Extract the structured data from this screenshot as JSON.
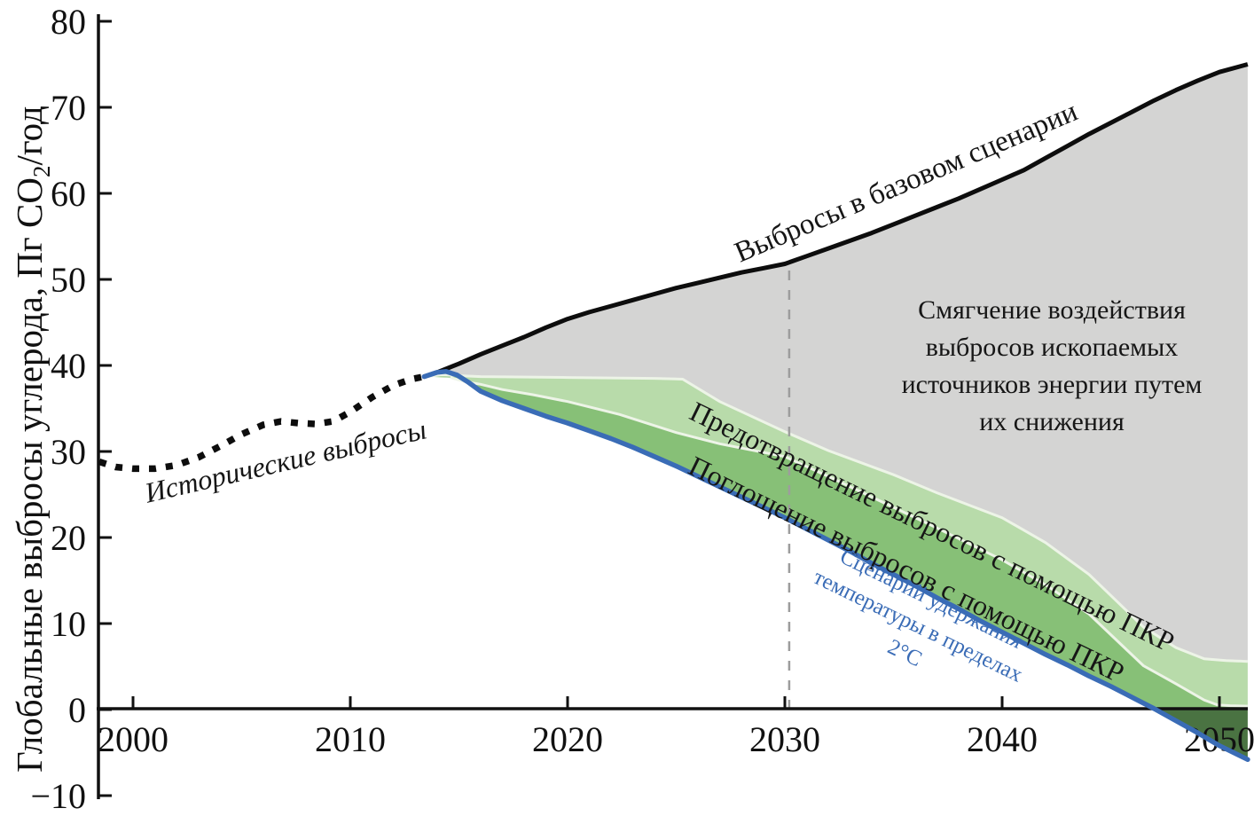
{
  "chart_data": {
    "type": "area",
    "title": "",
    "xlabel": "",
    "ylabel": {
      "pre": "Глобальные выбросы углерода, Пг СО",
      "sub": "2",
      "post": "/год"
    },
    "xlim": [
      1998.4,
      2051.3
    ],
    "ylim": [
      -10,
      80
    ],
    "grid": false,
    "legend_position": "none",
    "x_ticks": [
      {
        "v": 2000,
        "label": "2000"
      },
      {
        "v": 2010,
        "label": "2010"
      },
      {
        "v": 2020,
        "label": "2020"
      },
      {
        "v": 2030,
        "label": "2030"
      },
      {
        "v": 2040,
        "label": "2040"
      },
      {
        "v": 2050,
        "label": "2050"
      }
    ],
    "y_ticks": [
      {
        "v": 80,
        "label": "80"
      },
      {
        "v": 70,
        "label": "70"
      },
      {
        "v": 60,
        "label": "60"
      },
      {
        "v": 50,
        "label": "50"
      },
      {
        "v": 40,
        "label": "40"
      },
      {
        "v": 30,
        "label": "30"
      },
      {
        "v": 20,
        "label": "20"
      },
      {
        "v": 10,
        "label": "10"
      },
      {
        "v": 0,
        "label": "0"
      },
      {
        "v": -10,
        "label": "−10"
      }
    ],
    "reference_line": {
      "x": 2030.2,
      "y_top": 51.9,
      "style": "dashed"
    },
    "series": [
      {
        "id": "historical",
        "label": "Исторические выбросы",
        "type": "line",
        "style": "dotted",
        "color": "#0d0d0d"
      },
      {
        "id": "baseline",
        "label": "Выбросы в базовом сценарии",
        "type": "line",
        "style": "solid",
        "color": "#0d0d0d"
      },
      {
        "id": "two_deg",
        "label": "Сценарий удержания температуры в пределах 2°C",
        "type": "line",
        "style": "solid",
        "color": "#3a6cb6"
      },
      {
        "id": "mitigation",
        "label": "Смягчение воздействия выбросов ископаемых источников энергии путем их снижения",
        "type": "area",
        "color": "#d4d4d3"
      },
      {
        "id": "prevention",
        "label": "Предотвращение выбросов с помощью ПКР",
        "type": "area",
        "color": "#b8dbaa"
      },
      {
        "id": "absorption",
        "label": "Поглощение выбросов с помощью ПКР",
        "type": "area",
        "color": "#87c077"
      },
      {
        "id": "absorption_below_zero",
        "label": "",
        "type": "area",
        "color": "#4a7342"
      }
    ],
    "boundaries": {
      "historical": [
        [
          1998.45,
          28.8
        ],
        [
          1999.2,
          28.2
        ],
        [
          2000,
          28.0
        ],
        [
          2001,
          28.0
        ],
        [
          2002,
          28.4
        ],
        [
          2003,
          29.3
        ],
        [
          2004,
          30.6
        ],
        [
          2005,
          32.0
        ],
        [
          2006,
          33.1
        ],
        [
          2006.8,
          33.5
        ],
        [
          2007.6,
          33.3
        ],
        [
          2008.4,
          33.2
        ],
        [
          2009.2,
          33.5
        ],
        [
          2010,
          34.6
        ],
        [
          2011,
          36.3
        ],
        [
          2012,
          37.7
        ],
        [
          2012.8,
          38.4
        ],
        [
          2013.4,
          38.7
        ]
      ],
      "baseline": [
        [
          2013.4,
          38.7
        ],
        [
          2014,
          39.2
        ],
        [
          2015,
          40.2
        ],
        [
          2016,
          41.3
        ],
        [
          2017,
          42.3
        ],
        [
          2018,
          43.3
        ],
        [
          2019,
          44.4
        ],
        [
          2020,
          45.4
        ],
        [
          2021,
          46.2
        ],
        [
          2022,
          46.9
        ],
        [
          2023,
          47.6
        ],
        [
          2024,
          48.3
        ],
        [
          2025,
          49.0
        ],
        [
          2026,
          49.6
        ],
        [
          2027,
          50.2
        ],
        [
          2028,
          50.8
        ],
        [
          2029,
          51.3
        ],
        [
          2030,
          51.8
        ],
        [
          2031,
          52.7
        ],
        [
          2032,
          53.6
        ],
        [
          2033,
          54.5
        ],
        [
          2034,
          55.4
        ],
        [
          2035,
          56.4
        ],
        [
          2036,
          57.4
        ],
        [
          2037,
          58.4
        ],
        [
          2038,
          59.4
        ],
        [
          2039,
          60.5
        ],
        [
          2040,
          61.6
        ],
        [
          2041,
          62.7
        ],
        [
          2042,
          64.1
        ],
        [
          2043,
          65.5
        ],
        [
          2044,
          66.9
        ],
        [
          2045,
          68.2
        ],
        [
          2046,
          69.5
        ],
        [
          2047,
          70.8
        ],
        [
          2048,
          72.0
        ],
        [
          2049,
          73.1
        ],
        [
          2050,
          74.1
        ],
        [
          2051.3,
          75.0
        ]
      ],
      "gray_bottom": [
        [
          2013.4,
          38.7
        ],
        [
          2014.2,
          38.9
        ],
        [
          2016,
          38.7
        ],
        [
          2020,
          38.6
        ],
        [
          2024,
          38.5
        ],
        [
          2025.3,
          38.4
        ],
        [
          2027,
          35.8
        ],
        [
          2030,
          32.3
        ],
        [
          2032,
          30.1
        ],
        [
          2035,
          27.3
        ],
        [
          2037,
          25.2
        ],
        [
          2040,
          22.3
        ],
        [
          2042,
          19.4
        ],
        [
          2044,
          15.7
        ],
        [
          2046.5,
          9.6
        ],
        [
          2048,
          7.2
        ],
        [
          2049.3,
          5.9
        ],
        [
          2050.3,
          5.7
        ],
        [
          2051.3,
          5.6
        ]
      ],
      "separator": [
        [
          2014.6,
          38.6
        ],
        [
          2015.3,
          38.1
        ],
        [
          2016,
          37.8
        ],
        [
          2017,
          37.2
        ],
        [
          2018.4,
          36.6
        ],
        [
          2020,
          35.8
        ],
        [
          2022.4,
          34.3
        ],
        [
          2025,
          32.2
        ],
        [
          2027,
          30.9
        ],
        [
          2030,
          29.4
        ],
        [
          2032,
          27.1
        ],
        [
          2035,
          23.5
        ],
        [
          2037,
          21.1
        ],
        [
          2040,
          17.4
        ],
        [
          2042,
          14.5
        ],
        [
          2044,
          11.1
        ],
        [
          2046.5,
          5.1
        ],
        [
          2048,
          3.0
        ],
        [
          2049.3,
          1.1
        ],
        [
          2049.9,
          0.55
        ],
        [
          2050.5,
          0.45
        ],
        [
          2051.3,
          0.4
        ]
      ],
      "two_deg": [
        [
          2013.4,
          38.7
        ],
        [
          2014,
          39.2
        ],
        [
          2014.4,
          39.3
        ],
        [
          2014.9,
          38.9
        ],
        [
          2015.4,
          38.1
        ],
        [
          2016,
          37.0
        ],
        [
          2017,
          35.9
        ],
        [
          2018,
          35.0
        ],
        [
          2019,
          34.1
        ],
        [
          2020,
          33.3
        ],
        [
          2021,
          32.4
        ],
        [
          2022,
          31.5
        ],
        [
          2023,
          30.5
        ],
        [
          2024,
          29.4
        ],
        [
          2025,
          28.3
        ],
        [
          2026,
          27.1
        ],
        [
          2027,
          25.9
        ],
        [
          2028,
          24.7
        ],
        [
          2029,
          23.5
        ],
        [
          2030,
          22.3
        ],
        [
          2031,
          21.0
        ],
        [
          2032,
          19.7
        ],
        [
          2033,
          18.4
        ],
        [
          2034,
          17.0
        ],
        [
          2035,
          15.7
        ],
        [
          2036,
          14.4
        ],
        [
          2037,
          13.0
        ],
        [
          2038,
          11.7
        ],
        [
          2039,
          10.3
        ],
        [
          2040,
          9.0
        ],
        [
          2041,
          7.7
        ],
        [
          2042,
          6.4
        ],
        [
          2043,
          5.2
        ],
        [
          2044,
          3.9
        ],
        [
          2045,
          2.7
        ],
        [
          2046,
          1.4
        ],
        [
          2047,
          0.1
        ],
        [
          2048,
          -1.3
        ],
        [
          2049,
          -2.7
        ],
        [
          2050,
          -4.2
        ],
        [
          2051.3,
          -5.8
        ]
      ]
    },
    "zero_crossing_year": 2047.07,
    "annotations": {
      "historical": {
        "text": "Исторические выбросы",
        "color": "#161616"
      },
      "baseline": {
        "text": "Выбросы в базовом сценарии",
        "color": "#161616"
      },
      "mitigation": {
        "lines": [
          "Смягчение воздействия",
          "выбросов ископаемых",
          "источников энергии путем",
          "их снижения"
        ],
        "color": "#161616"
      },
      "prevention": {
        "text": "Предотвращение выбросов с помощью ПКР",
        "color": "#161616"
      },
      "absorption": {
        "text": "Поглощение выбросов с помощью ПКР",
        "color": "#161616"
      },
      "two_deg": {
        "lines": [
          "Сценарий удержания",
          "температуры в пределах",
          "2°C"
        ],
        "color": "#3a6cb6"
      }
    },
    "colors": {
      "mitigation": "#d4d4d3",
      "prevention": "#b8dbaa",
      "absorption": "#87c077",
      "absorption_dark": "#4a7342",
      "pale_separator": "#edf4e7",
      "blue": "#3a6cb6",
      "axis": "#111111",
      "dashed_reference": "#9d9d9d"
    }
  }
}
